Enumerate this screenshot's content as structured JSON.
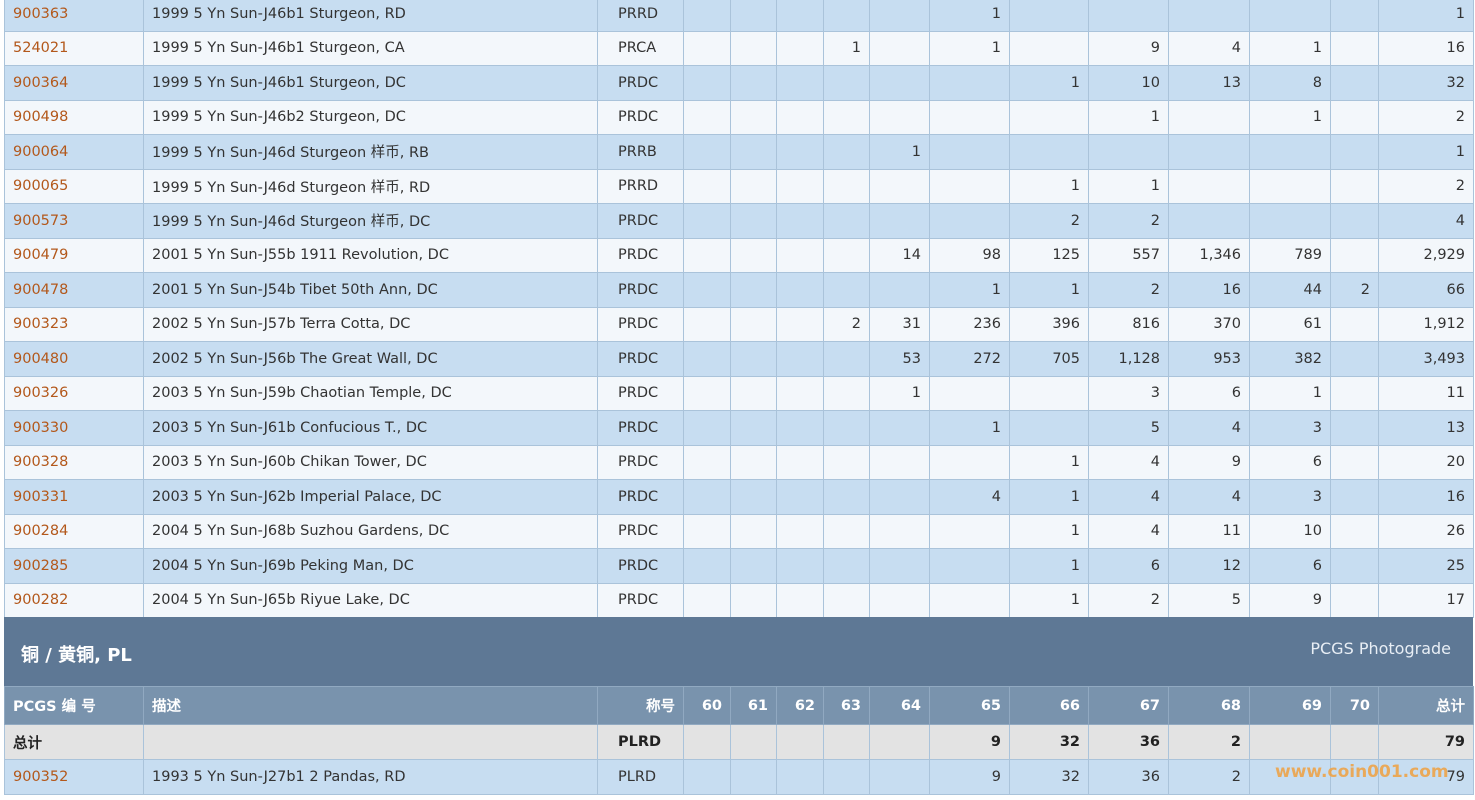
{
  "top_table": {
    "rows": [
      [
        "900363",
        "1999 5 Yn Sun-J46b1 Sturgeon, RD",
        "PRRD",
        null,
        null,
        null,
        null,
        null,
        "1",
        null,
        null,
        null,
        null,
        null,
        "1"
      ],
      [
        "524021",
        "1999 5 Yn Sun-J46b1 Sturgeon, CA",
        "PRCA",
        null,
        null,
        null,
        "1",
        null,
        "1",
        null,
        "9",
        "4",
        "1",
        null,
        "16"
      ],
      [
        "900364",
        "1999 5 Yn Sun-J46b1 Sturgeon, DC",
        "PRDC",
        null,
        null,
        null,
        null,
        null,
        null,
        "1",
        "10",
        "13",
        "8",
        null,
        "32"
      ],
      [
        "900498",
        "1999 5 Yn Sun-J46b2 Sturgeon, DC",
        "PRDC",
        null,
        null,
        null,
        null,
        null,
        null,
        null,
        "1",
        null,
        "1",
        null,
        "2"
      ],
      [
        "900064",
        "1999 5 Yn Sun-J46d Sturgeon 样币, RB",
        "PRRB",
        null,
        null,
        null,
        null,
        "1",
        null,
        null,
        null,
        null,
        null,
        null,
        "1"
      ],
      [
        "900065",
        "1999 5 Yn Sun-J46d Sturgeon 样币, RD",
        "PRRD",
        null,
        null,
        null,
        null,
        null,
        null,
        "1",
        "1",
        null,
        null,
        null,
        "2"
      ],
      [
        "900573",
        "1999 5 Yn Sun-J46d Sturgeon 样币, DC",
        "PRDC",
        null,
        null,
        null,
        null,
        null,
        null,
        "2",
        "2",
        null,
        null,
        null,
        "4"
      ],
      [
        "900479",
        "2001 5 Yn Sun-J55b 1911 Revolution, DC",
        "PRDC",
        null,
        null,
        null,
        null,
        "14",
        "98",
        "125",
        "557",
        "1,346",
        "789",
        null,
        "2,929"
      ],
      [
        "900478",
        "2001 5 Yn Sun-J54b Tibet 50th Ann, DC",
        "PRDC",
        null,
        null,
        null,
        null,
        null,
        "1",
        "1",
        "2",
        "16",
        "44",
        "2",
        "66"
      ],
      [
        "900323",
        "2002 5 Yn Sun-J57b Terra Cotta, DC",
        "PRDC",
        null,
        null,
        null,
        "2",
        "31",
        "236",
        "396",
        "816",
        "370",
        "61",
        null,
        "1,912"
      ],
      [
        "900480",
        "2002 5 Yn Sun-J56b The Great Wall, DC",
        "PRDC",
        null,
        null,
        null,
        null,
        "53",
        "272",
        "705",
        "1,128",
        "953",
        "382",
        null,
        "3,493"
      ],
      [
        "900326",
        "2003 5 Yn Sun-J59b Chaotian Temple, DC",
        "PRDC",
        null,
        null,
        null,
        null,
        "1",
        null,
        null,
        "3",
        "6",
        "1",
        null,
        "11"
      ],
      [
        "900330",
        "2003 5 Yn Sun-J61b Confucious T., DC",
        "PRDC",
        null,
        null,
        null,
        null,
        null,
        "1",
        null,
        "5",
        "4",
        "3",
        null,
        "13"
      ],
      [
        "900328",
        "2003 5 Yn Sun-J60b Chikan Tower, DC",
        "PRDC",
        null,
        null,
        null,
        null,
        null,
        null,
        "1",
        "4",
        "9",
        "6",
        null,
        "20"
      ],
      [
        "900331",
        "2003 5 Yn Sun-J62b Imperial Palace, DC",
        "PRDC",
        null,
        null,
        null,
        null,
        null,
        "4",
        "1",
        "4",
        "4",
        "3",
        null,
        "16"
      ],
      [
        "900284",
        "2004 5 Yn Sun-J68b Suzhou Gardens, DC",
        "PRDC",
        null,
        null,
        null,
        null,
        null,
        null,
        "1",
        "4",
        "11",
        "10",
        null,
        "26"
      ],
      [
        "900285",
        "2004 5 Yn Sun-J69b Peking Man, DC",
        "PRDC",
        null,
        null,
        null,
        null,
        null,
        null,
        "1",
        "6",
        "12",
        "6",
        null,
        "25"
      ],
      [
        "900282",
        "2004 5 Yn Sun-J65b Riyue Lake, DC",
        "PRDC",
        null,
        null,
        null,
        null,
        null,
        null,
        "1",
        "2",
        "5",
        "9",
        null,
        "17"
      ]
    ]
  },
  "section": {
    "title": "铜 / 黄铜, PL",
    "link": "PCGS Photograde",
    "columns": [
      "PCGS 编 号",
      "描述",
      "称号",
      "60",
      "61",
      "62",
      "63",
      "64",
      "65",
      "66",
      "67",
      "68",
      "69",
      "70",
      "总计"
    ],
    "total_row": [
      "总计",
      null,
      "PLRD",
      null,
      null,
      null,
      null,
      null,
      "9",
      "32",
      "36",
      "2",
      null,
      null,
      "79"
    ],
    "rows": [
      [
        "900352",
        "1993 5 Yn Sun-J27b1 2 Pandas, RD",
        "PLRD",
        null,
        null,
        null,
        null,
        null,
        "9",
        "32",
        "36",
        "2",
        null,
        null,
        "79"
      ]
    ]
  },
  "watermark": "www.coin001.com"
}
